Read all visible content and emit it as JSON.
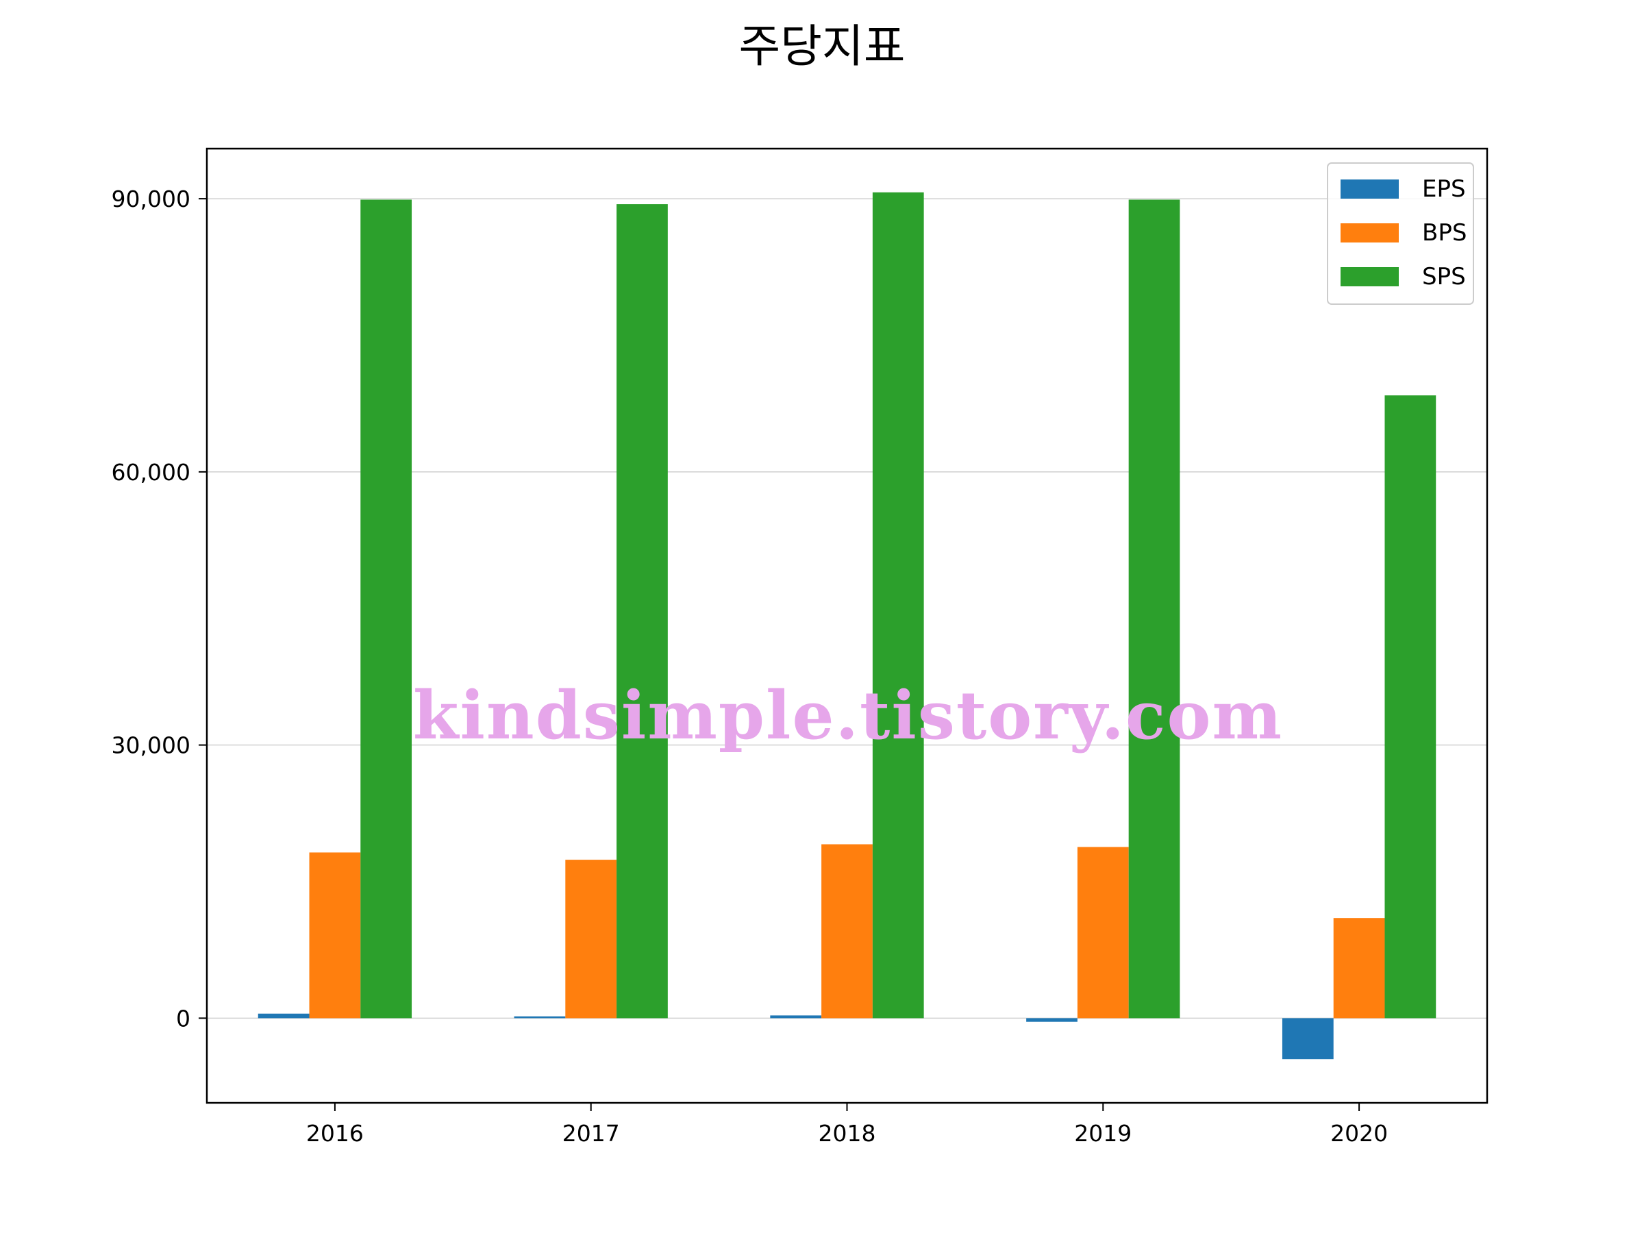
{
  "chart_data": {
    "type": "bar",
    "title": "주당지표",
    "xlabel": "",
    "ylabel": "",
    "categories": [
      "2016",
      "2017",
      "2018",
      "2019",
      "2020"
    ],
    "series": [
      {
        "name": "EPS",
        "color": "#1f77b4",
        "values": [
          500,
          200,
          300,
          -400,
          -4500
        ]
      },
      {
        "name": "BPS",
        "color": "#ff7f0e",
        "values": [
          18200,
          17400,
          19100,
          18800,
          11000
        ]
      },
      {
        "name": "SPS",
        "color": "#2ca02c",
        "values": [
          89900,
          89400,
          90700,
          89900,
          68400
        ]
      }
    ],
    "ylim": [
      -9300,
      95500
    ],
    "yticks": [
      0,
      30000,
      60000,
      90000
    ],
    "ytick_labels": [
      "0",
      "30,000",
      "60,000",
      "90,000"
    ],
    "grid": "horizontal",
    "legend": "top-right"
  },
  "watermark": {
    "text": "kindsimple.tistory.com",
    "color": "#e6a6ea"
  }
}
